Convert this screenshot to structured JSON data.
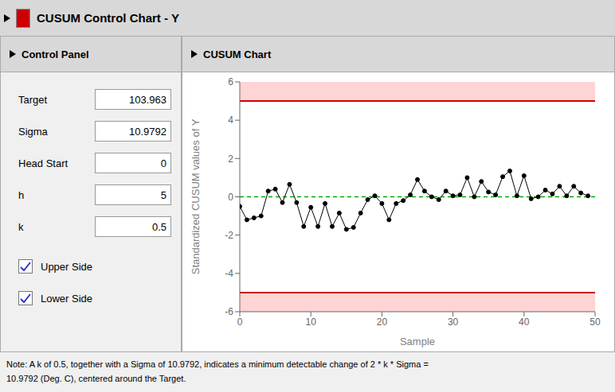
{
  "chart_data": {
    "type": "line",
    "title": "CUSUM Control Chart - Y",
    "subtitle": "CUSUM Chart",
    "xlabel": "Sample",
    "ylabel": "Standardized CUSUM values of Y",
    "x": [
      0,
      1,
      2,
      3,
      4,
      5,
      6,
      7,
      8,
      9,
      10,
      11,
      12,
      13,
      14,
      15,
      16,
      17,
      18,
      19,
      20,
      21,
      22,
      23,
      24,
      25,
      26,
      27,
      28,
      29,
      30,
      31,
      32,
      33,
      34,
      35,
      36,
      37,
      38,
      39,
      40,
      41,
      42,
      43,
      44,
      45,
      46,
      47,
      48,
      49
    ],
    "values": [
      -0.5,
      -1.2,
      -1.1,
      -1.0,
      0.3,
      0.4,
      -0.3,
      0.65,
      -0.3,
      -1.55,
      -0.55,
      -1.55,
      -0.35,
      -1.55,
      -0.85,
      -1.7,
      -1.6,
      -0.85,
      -0.15,
      0.05,
      -0.35,
      -1.2,
      -0.35,
      -0.2,
      0.1,
      0.9,
      0.3,
      0.0,
      -0.15,
      0.3,
      0.05,
      0.1,
      1.0,
      0.0,
      0.8,
      0.25,
      0.1,
      1.05,
      1.35,
      0.05,
      1.1,
      -0.1,
      0.0,
      0.35,
      0.15,
      0.55,
      0.05,
      0.55,
      0.2,
      0.05
    ],
    "color": "#000000",
    "marker": "circle",
    "xlim": [
      0,
      50
    ],
    "ylim": [
      -6,
      6
    ],
    "xticks": [
      0,
      10,
      20,
      30,
      40,
      50
    ],
    "yticks": [
      -6,
      -4,
      -2,
      0,
      2,
      4,
      6
    ],
    "grid": false,
    "upper_limit": 5,
    "lower_limit": -5,
    "center_line": 0,
    "limit_color": "#cc0000",
    "center_color": "#00aa00",
    "shade_color": "#ffcccc",
    "annotations": {
      "panel_title": "Control Panel",
      "fields": [
        [
          "Target",
          "103.963"
        ],
        [
          "Sigma",
          "10.9792"
        ],
        [
          "Head Start",
          "0"
        ],
        [
          "h",
          "5"
        ],
        [
          "k",
          "0.5"
        ]
      ],
      "checkboxes": [
        "Upper Side",
        "Lower Side"
      ],
      "notes": [
        "Note: A k of 0.5, together with a Sigma of 10.9792, indicates a minimum detectable change of 2 * k * Sigma =",
        "10.9792 (Deg. C), centered around the Target."
      ]
    }
  }
}
